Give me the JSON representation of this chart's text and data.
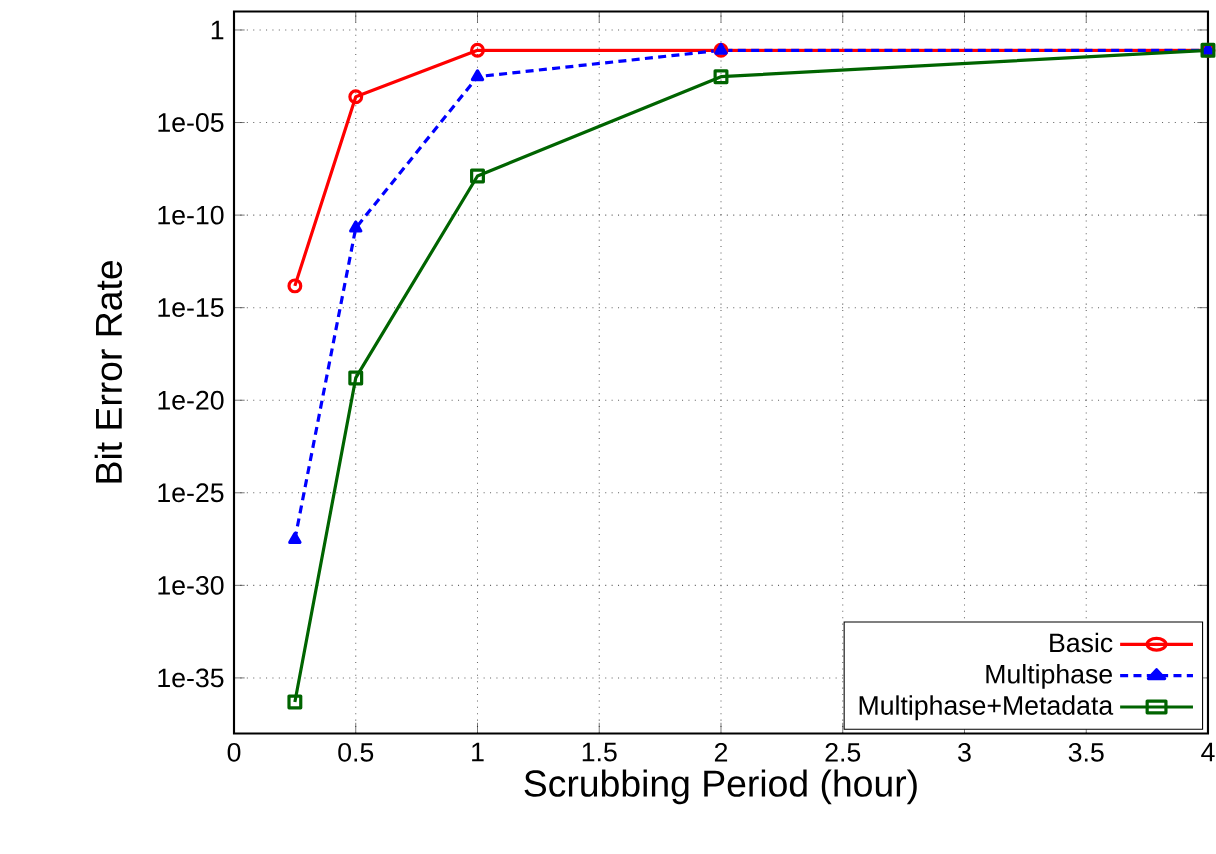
{
  "chart_data": {
    "type": "line",
    "xlabel": "Scrubbing Period (hour)",
    "ylabel": "Bit Error Rate",
    "log": "y",
    "grid": true,
    "legend": "bottom right",
    "x": [
      0.25,
      0.5,
      1,
      2,
      4
    ],
    "xlim": [
      0,
      4
    ],
    "xticks": [
      0,
      0.5,
      1,
      1.5,
      2,
      2.5,
      3,
      3.5,
      4
    ],
    "ylim": [
      1e-38,
      10
    ],
    "yticks": [
      1,
      {
        "value": 1e-05,
        "label": "1e-05"
      },
      {
        "value": 1e-10,
        "label": "1e-10"
      },
      {
        "value": 1e-15,
        "label": "1e-15"
      },
      {
        "value": 1e-20,
        "label": "1e-20"
      },
      {
        "value": 1e-25,
        "label": "1e-25"
      },
      {
        "value": 1e-30,
        "label": "1e-30"
      },
      {
        "value": 1e-35,
        "label": "1e-35"
      }
    ],
    "series": [
      {
        "name": "Basic",
        "color": "#ff0000",
        "marker": "circle",
        "line_style": "solid",
        "values": [
          1.5e-14,
          0.00025,
          0.08,
          0.08,
          0.08
        ]
      },
      {
        "name": "Multiphase",
        "color": "#0000ff",
        "marker": "triangle",
        "line_style": "dashed",
        "values": [
          3e-28,
          2e-11,
          0.003,
          0.08,
          0.08
        ]
      },
      {
        "name": "Multiphase+Metadata",
        "color": "#006400",
        "marker": "square",
        "line_style": "solid",
        "values": [
          5e-37,
          1.6e-19,
          1.3e-08,
          0.003,
          0.08
        ]
      }
    ]
  }
}
